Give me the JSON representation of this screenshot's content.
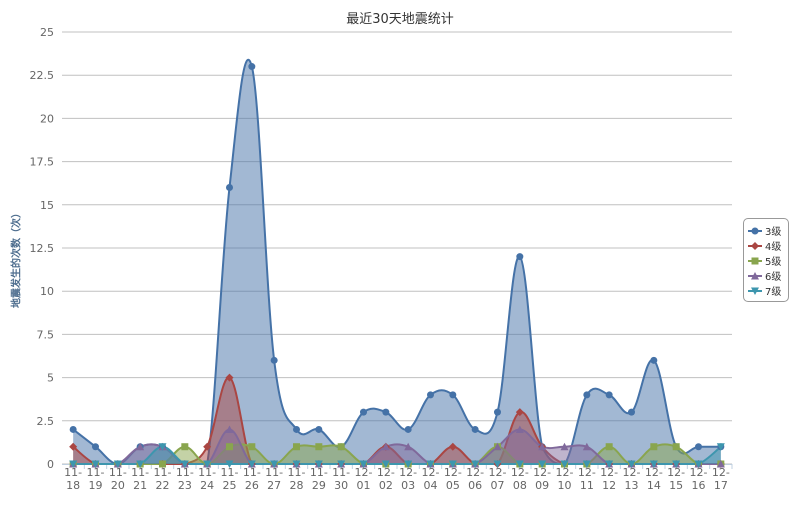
{
  "chart_data": {
    "type": "area",
    "title": "最近30天地震统计",
    "ylabel": "地震发生的次数（次）",
    "xlabel": "",
    "ylim": [
      0,
      25
    ],
    "yticks": [
      "0",
      "2.5",
      "5",
      "7.5",
      "10",
      "12.5",
      "15",
      "17.5",
      "20",
      "22.5",
      "25"
    ],
    "categories": [
      [
        "11-",
        "18"
      ],
      [
        "11-",
        "19"
      ],
      [
        "11-",
        "20"
      ],
      [
        "11-",
        "21"
      ],
      [
        "11-",
        "22"
      ],
      [
        "11-",
        "23"
      ],
      [
        "11-",
        "24"
      ],
      [
        "11-",
        "25"
      ],
      [
        "11-",
        "26"
      ],
      [
        "11-",
        "27"
      ],
      [
        "11-",
        "28"
      ],
      [
        "11-",
        "29"
      ],
      [
        "11-",
        "30"
      ],
      [
        "12-",
        "01"
      ],
      [
        "12-",
        "02"
      ],
      [
        "12-",
        "03"
      ],
      [
        "12-",
        "04"
      ],
      [
        "12-",
        "05"
      ],
      [
        "12-",
        "06"
      ],
      [
        "12-",
        "07"
      ],
      [
        "12-",
        "08"
      ],
      [
        "12-",
        "09"
      ],
      [
        "12-",
        "10"
      ],
      [
        "12-",
        "11"
      ],
      [
        "12-",
        "12"
      ],
      [
        "12-",
        "13"
      ],
      [
        "12-",
        "14"
      ],
      [
        "12-",
        "15"
      ],
      [
        "12-",
        "16"
      ],
      [
        "12-",
        "17"
      ]
    ],
    "grid": true,
    "legend_position": "right",
    "series": [
      {
        "name": "3级",
        "color": "#4572a7",
        "marker": "circle",
        "values": [
          2,
          1,
          0,
          1,
          1,
          0,
          0,
          16,
          23,
          6,
          2,
          2,
          1,
          3,
          3,
          2,
          4,
          4,
          2,
          3,
          12,
          1,
          0,
          4,
          4,
          3,
          6,
          1,
          1,
          1
        ]
      },
      {
        "name": "4级",
        "color": "#aa4643",
        "marker": "diamond",
        "values": [
          1,
          0,
          0,
          0,
          0,
          0,
          1,
          5,
          0,
          0,
          0,
          0,
          0,
          0,
          1,
          0,
          0,
          1,
          0,
          0,
          3,
          1,
          0,
          0,
          0,
          0,
          0,
          0,
          0,
          0
        ]
      },
      {
        "name": "5级",
        "color": "#89a54e",
        "marker": "square",
        "values": [
          0,
          0,
          0,
          0,
          0,
          1,
          0,
          1,
          1,
          0,
          1,
          1,
          1,
          0,
          0,
          0,
          0,
          0,
          0,
          1,
          0,
          0,
          0,
          0,
          1,
          0,
          1,
          1,
          0,
          0
        ]
      },
      {
        "name": "6级",
        "color": "#80699b",
        "marker": "triangle",
        "values": [
          0,
          0,
          0,
          1,
          1,
          0,
          0,
          2,
          0,
          0,
          0,
          0,
          0,
          0,
          1,
          1,
          0,
          0,
          0,
          1,
          2,
          1,
          1,
          1,
          0,
          0,
          0,
          0,
          0,
          0
        ]
      },
      {
        "name": "7级",
        "color": "#3d96ae",
        "marker": "triangle-down",
        "values": [
          0,
          0,
          0,
          0,
          1,
          0,
          0,
          0,
          0,
          0,
          0,
          0,
          0,
          0,
          0,
          0,
          0,
          0,
          0,
          0,
          0,
          0,
          0,
          0,
          0,
          0,
          0,
          0,
          0,
          1
        ]
      }
    ]
  }
}
